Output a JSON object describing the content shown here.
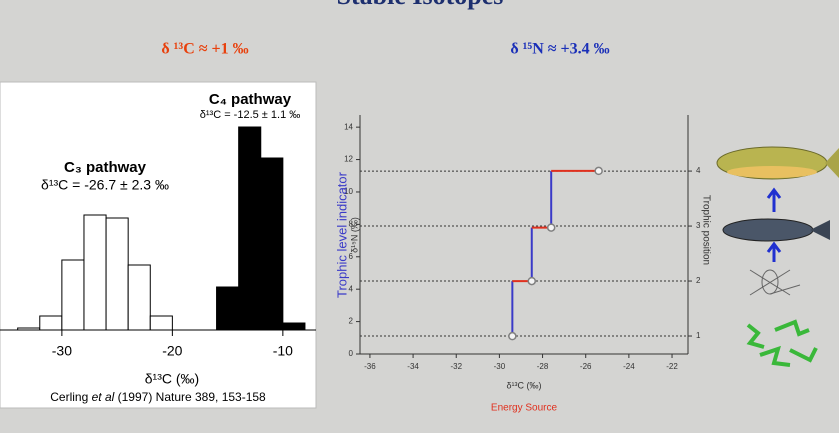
{
  "header": {
    "title": "Stable Isotopes",
    "notes": [
      "δ ¹³C ≈ +1 ‰",
      "δ ¹⁵N ≈ +3.4 ‰"
    ]
  },
  "chart_data": [
    {
      "type": "histogram",
      "xlabel": "δ¹³C (‰)",
      "xlim": [
        -35.6,
        -7
      ],
      "xticks": [
        -30,
        -20,
        -10
      ],
      "ylim": [
        0,
        248
      ],
      "series": [
        {
          "name": "C₃ pathway",
          "annotation": "δ¹³C = -26.7 ± 2.3 ‰",
          "color": "#ffffff",
          "bins": [
            -34,
            -32,
            -30,
            -28,
            -26,
            -24,
            -22,
            -20
          ],
          "values": [
            2,
            14,
            70,
            115,
            112,
            65,
            14
          ]
        },
        {
          "name": "C₄ pathway",
          "annotation": "δ¹³C = -12.5 ± 1.1 ‰",
          "color": "#000000",
          "bins": [
            -16,
            -14,
            -12,
            -10,
            -8
          ],
          "values": [
            43,
            203,
            172,
            7
          ]
        }
      ],
      "source": [
        "Cerling ",
        "et al",
        " (1997) Nature 389, 153-158"
      ]
    },
    {
      "type": "step",
      "xlabel": "δ¹³C (‰)",
      "xsublabel": "Energy Source",
      "ylabel": "Trophic level indicator",
      "ysublabel": "δ¹⁵N (‰)",
      "y2label": "Trophic position",
      "xlim": [
        -36.46,
        -21.26
      ],
      "xticks": [
        -36,
        -34,
        -32,
        -30,
        -28,
        -26,
        -24,
        -22
      ],
      "ylim": [
        0,
        14.75
      ],
      "yticks": [
        0,
        2,
        4,
        6,
        8,
        10,
        12,
        14
      ],
      "y2lim": [
        0.673,
        5.02
      ],
      "y2ticks": [
        1,
        2,
        3,
        4
      ],
      "rise_color": "#3a3ac8",
      "run_color": "#e0301e",
      "series": [
        {
          "color": "#808080",
          "x": [
            -29.4,
            -28.5,
            -27.6,
            -25.4
          ],
          "y": [
            1.1,
            4.5,
            7.8,
            11.3
          ]
        }
      ]
    }
  ]
}
